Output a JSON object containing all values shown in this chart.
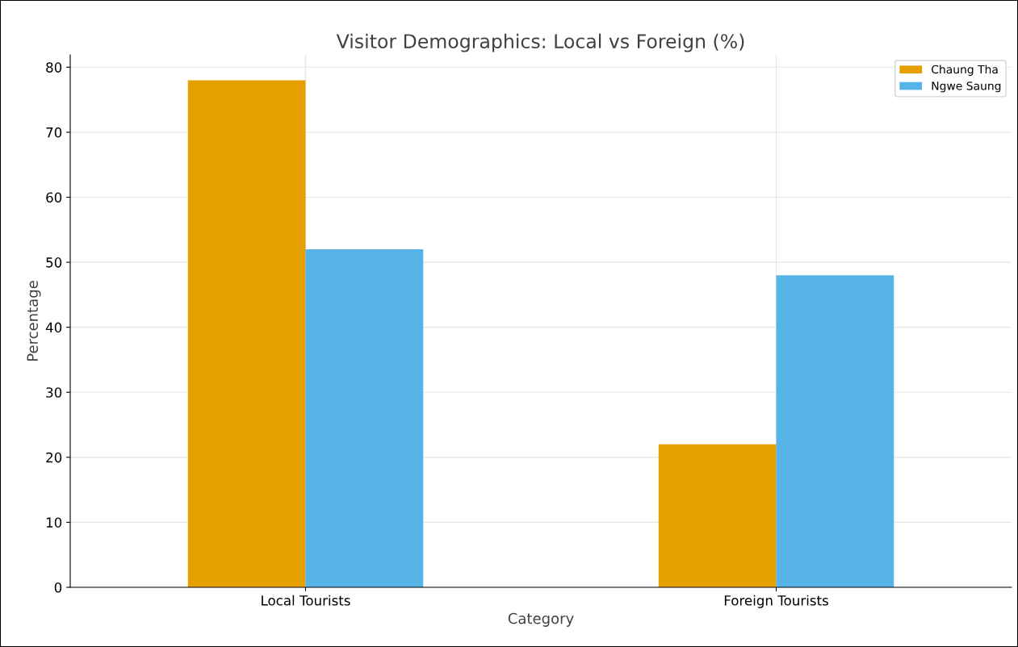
{
  "chart_data": {
    "type": "bar",
    "title": "Visitor Demographics: Local vs Foreign (%)",
    "xlabel": "Category",
    "ylabel": "Percentage",
    "categories": [
      "Local Tourists",
      "Foreign Tourists"
    ],
    "series": [
      {
        "name": "Chaung Tha",
        "color": "#e69f00",
        "values": [
          78,
          22
        ]
      },
      {
        "name": "Ngwe Saung",
        "color": "#56b4e9",
        "values": [
          52,
          48
        ]
      }
    ],
    "ylim": [
      0,
      81.9
    ],
    "yticks": [
      0,
      10,
      20,
      30,
      40,
      50,
      60,
      70,
      80
    ],
    "grid": true,
    "legend": "top right"
  }
}
